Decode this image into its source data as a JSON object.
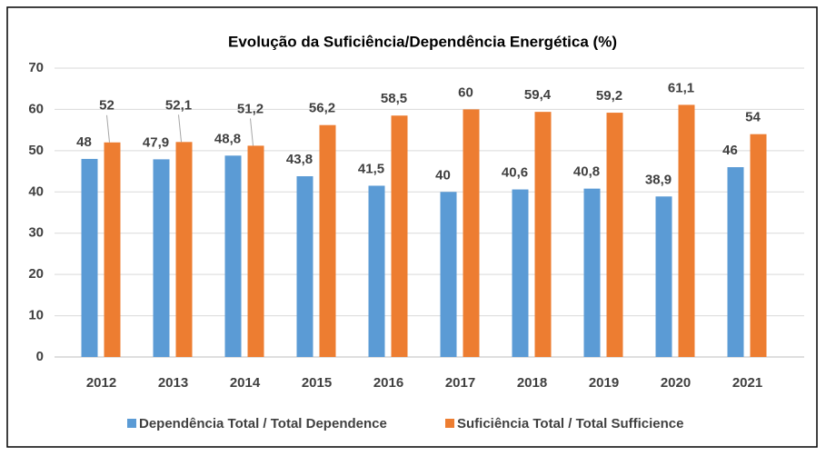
{
  "chart_data": {
    "type": "bar",
    "title": "Evolução da Suficiência/Dependência Energética (%)",
    "categories": [
      "2012",
      "2013",
      "2014",
      "2015",
      "2016",
      "2017",
      "2018",
      "2019",
      "2020",
      "2021"
    ],
    "series": [
      {
        "name": "Dependência Total / Total Dependence",
        "color": "#5b9bd5",
        "values": [
          48,
          47.9,
          48.8,
          43.8,
          41.5,
          40,
          40.6,
          40.8,
          38.9,
          46
        ],
        "value_labels": [
          "48",
          "47,9",
          "48,8",
          "43,8",
          "41,5",
          "40",
          "40,6",
          "40,8",
          "38,9",
          "46"
        ]
      },
      {
        "name": "Suficiência Total / Total Sufficience",
        "color": "#ed7d31",
        "values": [
          52,
          52.1,
          51.2,
          56.2,
          58.5,
          60,
          59.4,
          59.2,
          61.1,
          54
        ],
        "value_labels": [
          "52",
          "52,1",
          "51,2",
          "56,2",
          "58,5",
          "60",
          "59,4",
          "59,2",
          "61,1",
          "54"
        ]
      }
    ],
    "ylim": [
      0,
      70
    ],
    "yticks": [
      0,
      10,
      20,
      30,
      40,
      50,
      60,
      70
    ],
    "grid": true,
    "legend": "bottom"
  }
}
